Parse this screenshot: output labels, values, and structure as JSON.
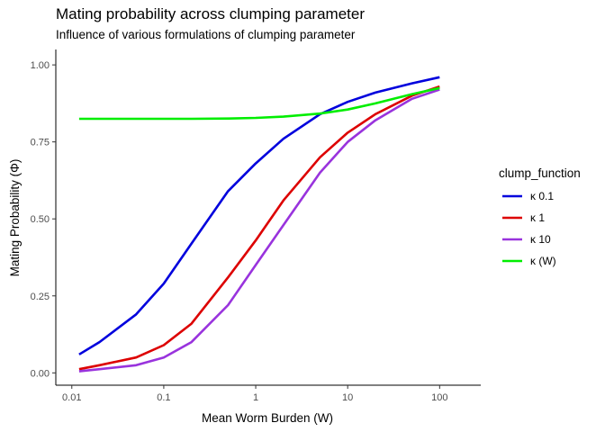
{
  "chart_data": {
    "type": "line",
    "title": "Mating probability across clumping parameter",
    "subtitle": "Influence of various formulations of clumping parameter",
    "xlabel": "Mean Worm Burden (W)",
    "ylabel": "Mating Probability (Φ)",
    "x_scale": "log10",
    "xlim": [
      0.0067,
      280
    ],
    "ylim": [
      -0.04,
      1.05
    ],
    "x_ticks": [
      0.01,
      0.1,
      1,
      10,
      100
    ],
    "x_tick_labels": [
      "0.01",
      "0.1",
      "1",
      "10",
      "100"
    ],
    "y_ticks": [
      0,
      0.25,
      0.5,
      0.75,
      1.0
    ],
    "y_tick_labels": [
      "0.00",
      "0.25",
      "0.50",
      "0.75",
      "1.00"
    ],
    "grid": false,
    "legend": {
      "title": "clump_function",
      "position": "right"
    },
    "x": [
      0.012,
      0.02,
      0.05,
      0.1,
      0.2,
      0.5,
      1,
      2,
      5,
      10,
      20,
      50,
      100
    ],
    "series": [
      {
        "name": "κ 0.1",
        "color": "#0000dd",
        "values": [
          0.06,
          0.1,
          0.19,
          0.29,
          0.42,
          0.59,
          0.68,
          0.76,
          0.84,
          0.88,
          0.91,
          0.94,
          0.96
        ]
      },
      {
        "name": "κ 1",
        "color": "#dd0000",
        "values": [
          0.012,
          0.025,
          0.05,
          0.09,
          0.16,
          0.31,
          0.43,
          0.56,
          0.7,
          0.78,
          0.84,
          0.9,
          0.93
        ]
      },
      {
        "name": "κ 10",
        "color": "#9933dd",
        "values": [
          0.005,
          0.012,
          0.025,
          0.05,
          0.1,
          0.22,
          0.35,
          0.48,
          0.65,
          0.75,
          0.82,
          0.89,
          0.92
        ]
      },
      {
        "name": "κ (W)",
        "color": "#00ee00",
        "values": [
          0.825,
          0.825,
          0.825,
          0.825,
          0.825,
          0.826,
          0.828,
          0.832,
          0.842,
          0.855,
          0.875,
          0.905,
          0.925
        ]
      }
    ]
  }
}
